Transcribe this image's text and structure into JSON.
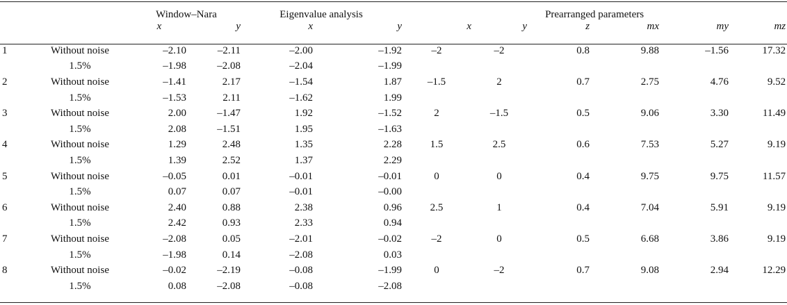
{
  "header": {
    "groups": {
      "window_nara": "Window–Nara",
      "eigenvalue": "Eigenvalue analysis",
      "prearranged": "Prearranged parameters"
    },
    "subheaders": {
      "wn_x": "x",
      "wn_y": "y",
      "ev_x": "x",
      "ev_y": "y",
      "p_x": "x",
      "p_y": "y",
      "p_z": "z",
      "p_mx": "mx",
      "p_my": "my",
      "p_mz": "mz"
    }
  },
  "rows": [
    {
      "id": "1",
      "a": {
        "cond": "Without noise",
        "wn_x": "–2.10",
        "wn_y": "–2.11",
        "ev_x": "–2.00",
        "ev_y": "–1.92"
      },
      "b": {
        "cond": "1.5%",
        "wn_x": "–1.98",
        "wn_y": "–2.08",
        "ev_x": "–2.04",
        "ev_y": "–1.99"
      },
      "p": {
        "x": "–2",
        "y": "–2",
        "z": "0.8",
        "mx": "9.88",
        "my": "–1.56",
        "mz": "17.32"
      }
    },
    {
      "id": "2",
      "a": {
        "cond": "Without noise",
        "wn_x": "–1.41",
        "wn_y": "2.17",
        "ev_x": "–1.54",
        "ev_y": "1.87"
      },
      "b": {
        "cond": "1.5%",
        "wn_x": "–1.53",
        "wn_y": "2.11",
        "ev_x": "–1.62",
        "ev_y": "1.99"
      },
      "p": {
        "x": "–1.5",
        "y": "2",
        "z": "0.7",
        "mx": "2.75",
        "my": "4.76",
        "mz": "9.52"
      }
    },
    {
      "id": "3",
      "a": {
        "cond": "Without noise",
        "wn_x": "2.00",
        "wn_y": "–1.47",
        "ev_x": "1.92",
        "ev_y": "–1.52"
      },
      "b": {
        "cond": "1.5%",
        "wn_x": "2.08",
        "wn_y": "–1.51",
        "ev_x": "1.95",
        "ev_y": "–1.63"
      },
      "p": {
        "x": "2",
        "y": "–1.5",
        "z": "0.5",
        "mx": "9.06",
        "my": "3.30",
        "mz": "11.49"
      }
    },
    {
      "id": "4",
      "a": {
        "cond": "Without noise",
        "wn_x": "1.29",
        "wn_y": "2.48",
        "ev_x": "1.35",
        "ev_y": "2.28"
      },
      "b": {
        "cond": "1.5%",
        "wn_x": "1.39",
        "wn_y": "2.52",
        "ev_x": "1.37",
        "ev_y": "2.29"
      },
      "p": {
        "x": "1.5",
        "y": "2.5",
        "z": "0.6",
        "mx": "7.53",
        "my": "5.27",
        "mz": "9.19"
      }
    },
    {
      "id": "5",
      "a": {
        "cond": "Without noise",
        "wn_x": "–0.05",
        "wn_y": "0.01",
        "ev_x": "–0.01",
        "ev_y": "–0.01"
      },
      "b": {
        "cond": "1.5%",
        "wn_x": "0.07",
        "wn_y": "0.07",
        "ev_x": "–0.01",
        "ev_y": "–0.00"
      },
      "p": {
        "x": "0",
        "y": "0",
        "z": "0.4",
        "mx": "9.75",
        "my": "9.75",
        "mz": "11.57"
      }
    },
    {
      "id": "6",
      "a": {
        "cond": "Without noise",
        "wn_x": "2.40",
        "wn_y": "0.88",
        "ev_x": "2.38",
        "ev_y": "0.96"
      },
      "b": {
        "cond": "1.5%",
        "wn_x": "2.42",
        "wn_y": "0.93",
        "ev_x": "2.33",
        "ev_y": "0.94"
      },
      "p": {
        "x": "2.5",
        "y": "1",
        "z": "0.4",
        "mx": "7.04",
        "my": "5.91",
        "mz": "9.19"
      }
    },
    {
      "id": "7",
      "a": {
        "cond": "Without noise",
        "wn_x": "–2.08",
        "wn_y": "0.05",
        "ev_x": "–2.01",
        "ev_y": "–0.02"
      },
      "b": {
        "cond": "1.5%",
        "wn_x": "–1.98",
        "wn_y": "0.14",
        "ev_x": "–2.08",
        "ev_y": "0.03"
      },
      "p": {
        "x": "–2",
        "y": "0",
        "z": "0.5",
        "mx": "6.68",
        "my": "3.86",
        "mz": "9.19"
      }
    },
    {
      "id": "8",
      "a": {
        "cond": "Without noise",
        "wn_x": "–0.02",
        "wn_y": "–2.19",
        "ev_x": "–0.08",
        "ev_y": "–1.99"
      },
      "b": {
        "cond": "1.5%",
        "wn_x": "0.08",
        "wn_y": "–2.08",
        "ev_x": "–0.08",
        "ev_y": "–2.08"
      },
      "p": {
        "x": "0",
        "y": "–2",
        "z": "0.7",
        "mx": "9.08",
        "my": "2.94",
        "mz": "12.29"
      }
    }
  ]
}
